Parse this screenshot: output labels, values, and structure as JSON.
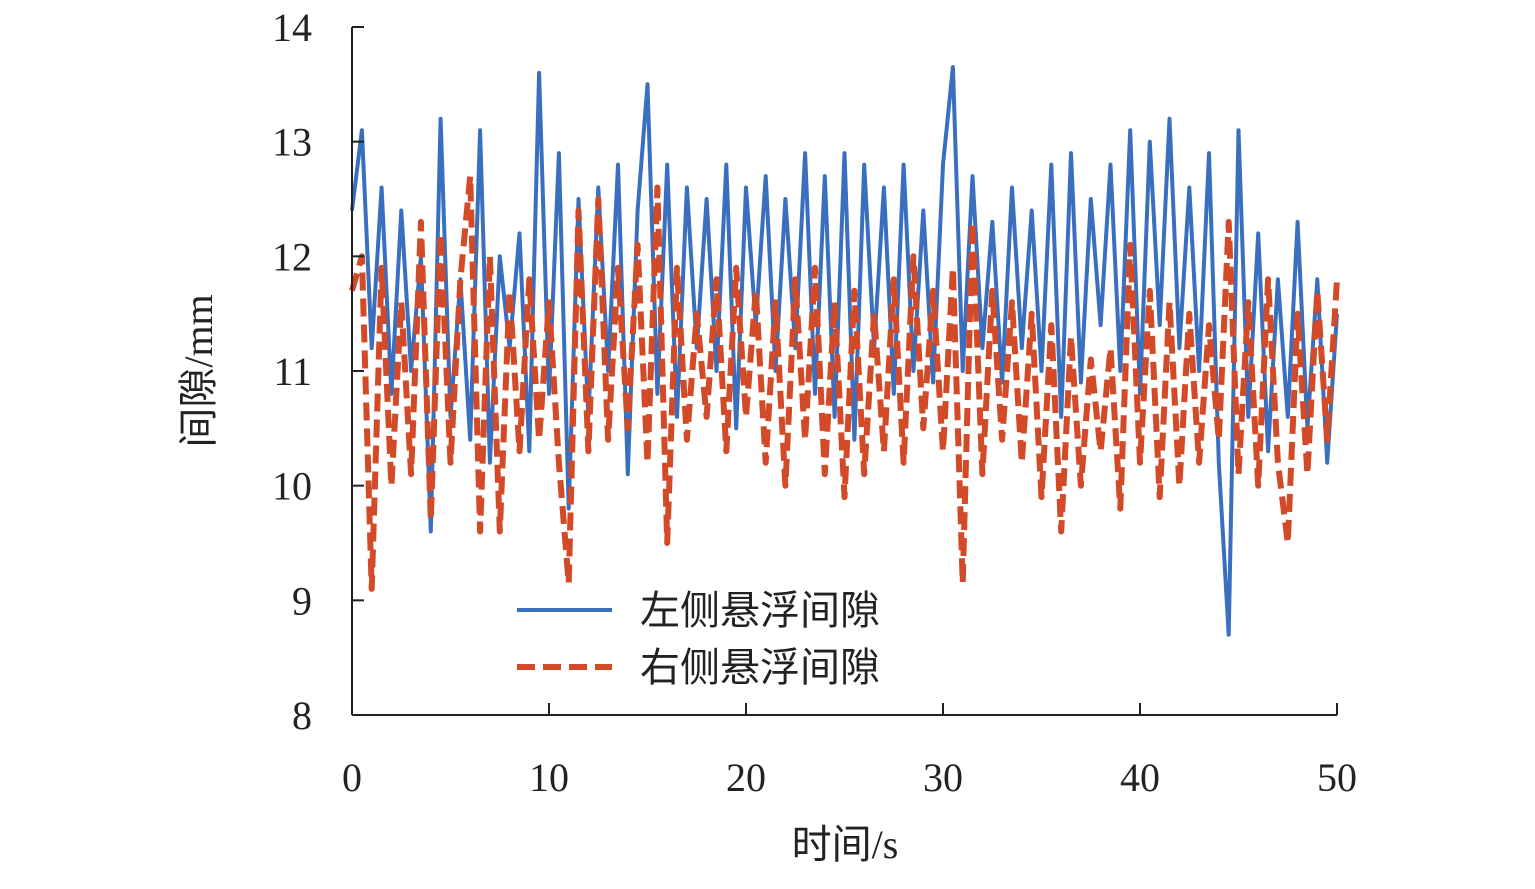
{
  "chart_data": {
    "type": "line",
    "xlabel": "时间/s",
    "ylabel": "间隙/mm",
    "x": [
      0,
      0.5,
      1,
      1.5,
      2,
      2.5,
      3,
      3.5,
      4,
      4.5,
      5,
      5.5,
      6,
      6.5,
      7,
      7.5,
      8,
      8.5,
      9,
      9.5,
      10,
      10.5,
      11,
      11.5,
      12,
      12.5,
      13,
      13.5,
      14,
      14.5,
      15,
      15.5,
      16,
      16.5,
      17,
      17.5,
      18,
      18.5,
      19,
      19.5,
      20,
      20.5,
      21,
      21.5,
      22,
      22.5,
      23,
      23.5,
      24,
      24.5,
      25,
      25.5,
      26,
      26.5,
      27,
      27.5,
      28,
      28.5,
      29,
      29.5,
      30,
      30.5,
      31,
      31.5,
      32,
      32.5,
      33,
      33.5,
      34,
      34.5,
      35,
      35.5,
      36,
      36.5,
      37,
      37.5,
      38,
      38.5,
      39,
      39.5,
      40,
      40.5,
      41,
      41.5,
      42,
      42.5,
      43,
      43.5,
      44,
      44.5,
      45,
      45.5,
      46,
      46.5,
      47,
      47.5,
      48,
      48.5,
      49,
      49.5,
      50
    ],
    "series": [
      {
        "name": "左侧悬浮间隙",
        "color": "#3a6fbf",
        "dashed": false,
        "values": [
          12.4,
          13.1,
          11.2,
          12.6,
          10.8,
          12.4,
          11.0,
          12.0,
          9.6,
          13.2,
          10.6,
          11.8,
          10.4,
          13.1,
          10.2,
          12.0,
          11.2,
          12.2,
          10.3,
          13.6,
          10.8,
          12.9,
          9.8,
          12.5,
          10.6,
          12.6,
          11.0,
          12.8,
          10.1,
          12.4,
          13.5,
          10.8,
          12.8,
          10.6,
          12.6,
          11.2,
          12.5,
          11.0,
          12.8,
          10.5,
          12.6,
          11.4,
          12.7,
          11.0,
          12.5,
          11.2,
          12.9,
          10.8,
          12.7,
          10.6,
          12.9,
          10.4,
          12.8,
          11.2,
          12.6,
          10.8,
          12.8,
          11.0,
          12.4,
          10.9,
          12.8,
          13.65,
          11.0,
          12.7,
          11.2,
          12.3,
          10.9,
          12.6,
          11.2,
          12.4,
          11.0,
          12.8,
          10.6,
          12.9,
          10.9,
          12.5,
          11.4,
          12.8,
          11.0,
          13.1,
          10.8,
          13.0,
          11.4,
          13.2,
          11.2,
          12.6,
          11.0,
          12.9,
          10.2,
          8.7,
          13.1,
          10.6,
          12.2,
          10.3,
          11.8,
          10.6,
          12.3,
          10.5,
          11.8,
          10.2,
          11.5
        ]
      },
      {
        "name": "右侧悬浮间隙",
        "color": "#d24a27",
        "dashed": true,
        "values": [
          11.7,
          12.0,
          9.1,
          11.9,
          10.0,
          11.6,
          10.1,
          12.3,
          9.7,
          12.2,
          10.2,
          11.8,
          12.7,
          9.6,
          12.0,
          9.6,
          11.7,
          10.3,
          11.8,
          10.4,
          11.6,
          10.2,
          9.15,
          12.4,
          10.3,
          12.5,
          10.4,
          11.9,
          10.5,
          12.1,
          10.2,
          12.6,
          9.5,
          11.9,
          10.4,
          11.5,
          10.6,
          11.8,
          10.3,
          11.9,
          10.6,
          11.7,
          10.2,
          11.6,
          10.0,
          11.8,
          10.4,
          11.9,
          10.1,
          11.6,
          9.9,
          11.7,
          10.1,
          11.5,
          10.3,
          11.8,
          10.2,
          12.0,
          10.5,
          11.7,
          10.3,
          11.9,
          9.15,
          12.3,
          10.1,
          11.7,
          10.4,
          11.6,
          10.2,
          11.5,
          9.9,
          11.4,
          9.6,
          11.3,
          10.0,
          11.1,
          10.3,
          11.2,
          9.8,
          12.1,
          10.2,
          11.7,
          9.9,
          11.6,
          10.0,
          11.5,
          10.2,
          11.4,
          10.4,
          12.3,
          10.1,
          11.6,
          10.0,
          11.8,
          10.2,
          9.5,
          11.5,
          10.1,
          11.7,
          10.4,
          11.8
        ]
      }
    ],
    "xlim": [
      0,
      50
    ],
    "xticks": [
      0,
      10,
      20,
      30,
      40,
      50
    ],
    "ylim": [
      8,
      14
    ],
    "yticks": [
      8,
      9,
      10,
      11,
      12,
      13,
      14
    ],
    "grid": false,
    "legend": "lower center"
  }
}
